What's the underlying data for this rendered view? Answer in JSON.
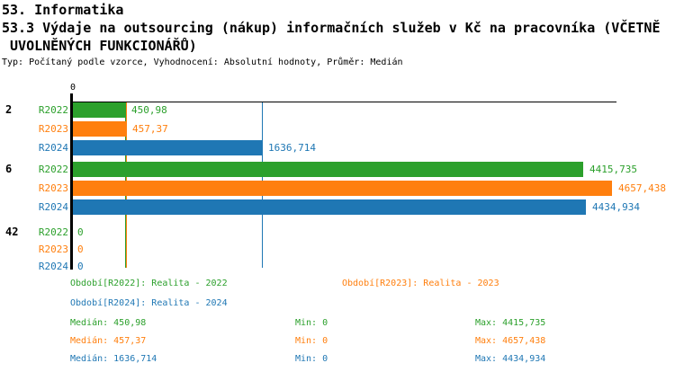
{
  "header": {
    "title": "53. Informatika",
    "subtitle_line1": "53.3 Výdaje na outsourcing (nákup) informačních služeb v Kč na pracovníka (VČETNĚ",
    "subtitle_line2": " UVOLNĚNÝCH FUNKCIONÁŘŮ)",
    "meta": "Typ: Počítaný podle vzorce, Vyhodnocení: Absolutní hodnoty, Průměr: Medián"
  },
  "colors": {
    "axis": "#000000",
    "background": "#ffffff",
    "r2022": "#2ca02c",
    "r2023": "#ff7f0e",
    "r2024": "#1f77b4"
  },
  "chart_data": {
    "type": "bar",
    "orientation": "horizontal",
    "title": "53.3 Výdaje na outsourcing (nákup) informačních služeb v Kč na pracovníka (VČETNĚ UVOLNĚNÝCH FUNKCIONÁŘŮ)",
    "categories": [
      "2",
      "6",
      "42"
    ],
    "series": [
      {
        "name": "R2022",
        "legend": "Období[R2022]: Realita - 2022",
        "color": "#2ca02c",
        "values": [
          450.98,
          4415.735,
          0
        ],
        "value_labels": [
          "450,98",
          "4415,735",
          "0"
        ],
        "median": 450.98,
        "min": 0,
        "max": 4415.735
      },
      {
        "name": "R2023",
        "legend": "Období[R2023]: Realita - 2023",
        "color": "#ff7f0e",
        "values": [
          457.37,
          4657.438,
          0
        ],
        "value_labels": [
          "457,37",
          "4657,438",
          "0"
        ],
        "median": 457.37,
        "min": 0,
        "max": 4657.438
      },
      {
        "name": "R2024",
        "legend": "Období[R2024]: Realita - 2024",
        "color": "#1f77b4",
        "values": [
          1636.714,
          4434.934,
          0
        ],
        "value_labels": [
          "1636,714",
          "4434,934",
          "0"
        ],
        "median": 1636.714,
        "min": 0,
        "max": 4434.934
      }
    ],
    "xlim": [
      0,
      4700
    ],
    "x_tick_labels": [
      "0"
    ],
    "grid": false,
    "median_lines": true,
    "legend_position": "bottom"
  },
  "stats": {
    "rows": [
      {
        "median": "Medián: 450,98",
        "min": "Min: 0",
        "max": "Max: 4415,735"
      },
      {
        "median": "Medián: 457,37",
        "min": "Min: 0",
        "max": "Max: 4657,438"
      },
      {
        "median": "Medián: 1636,714",
        "min": "Min: 0",
        "max": "Max: 4434,934"
      }
    ]
  }
}
